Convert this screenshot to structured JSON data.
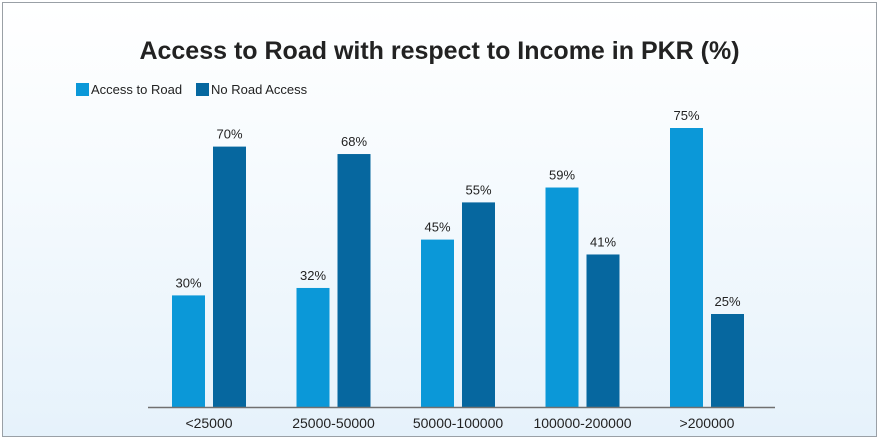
{
  "chart_data": {
    "type": "bar",
    "title": "Access to Road with respect to Income in PKR (%)",
    "xlabel": "",
    "ylabel": "",
    "categories": [
      "<25000",
      "25000-50000",
      "50000-100000",
      "100000-200000",
      ">200000"
    ],
    "series": [
      {
        "name": "Access to Road",
        "values": [
          30,
          32,
          45,
          59,
          75
        ],
        "color": "#0b98d8",
        "labels": [
          "30%",
          "32%",
          "45%",
          "59%",
          "75%"
        ]
      },
      {
        "name": "No Road Access",
        "values": [
          70,
          68,
          55,
          41,
          25
        ],
        "color": "#06679f",
        "labels": [
          "70%",
          "68%",
          "55%",
          "41%",
          "25%"
        ]
      }
    ],
    "ylim": [
      0,
      100
    ],
    "grid": false,
    "legend_position": "top-left",
    "axis_color": "#707070"
  }
}
